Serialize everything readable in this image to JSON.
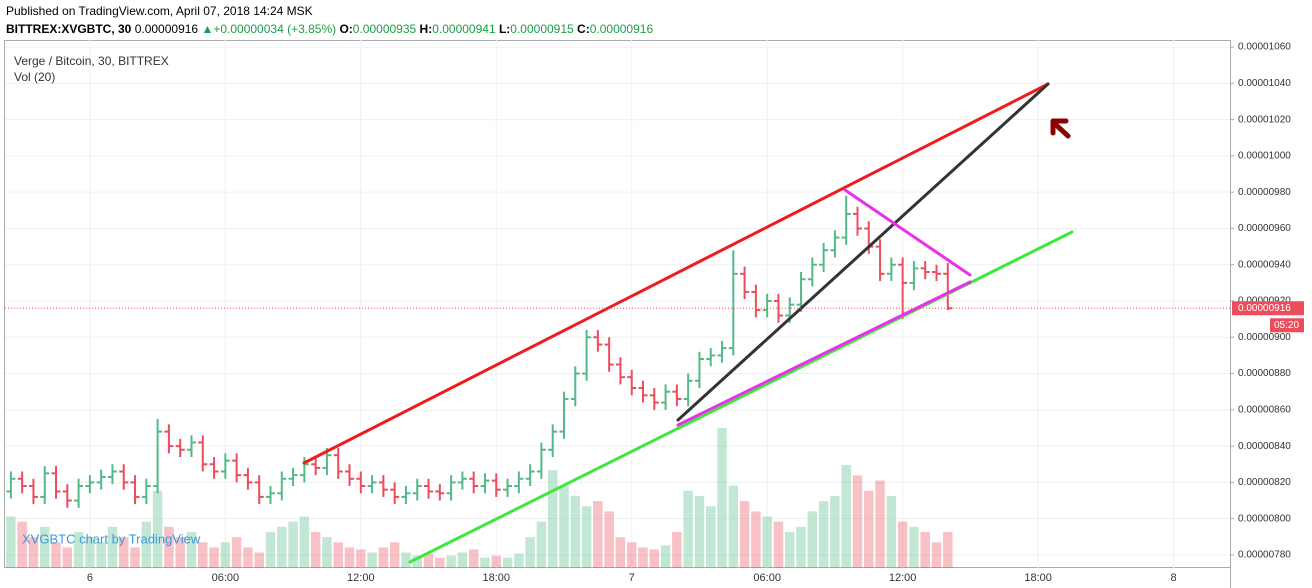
{
  "header": {
    "published": "Published on TradingView.com, April 07, 2018 14:24 MSK",
    "symbol": "BITTREX:XVGBTC, 30",
    "last": "0.00000916",
    "arrow": "▲",
    "change": "+0.00000034 (+3.85%)",
    "o_label": "O:",
    "o": "0.00000935",
    "h_label": "H:",
    "h": "0.00000941",
    "l_label": "L:",
    "l": "0.00000915",
    "c_label": "C:",
    "c": "0.00000916"
  },
  "chart_data": {
    "type": "ohlc",
    "title": "Verge / Bitcoin, 30, BITTREX",
    "volume_label": "Vol (20)",
    "watermark": "XVGBTC chart by TradingView",
    "up_color": "#53b987",
    "down_color": "#eb4d5c",
    "x": [
      -3.5,
      -3,
      -2.5,
      -2,
      -1.5,
      -1,
      -0.5,
      0,
      0.5,
      1,
      1.5,
      2,
      2.5,
      3,
      3.5,
      4,
      4.5,
      5,
      5.5,
      6,
      6.5,
      7,
      7.5,
      8,
      8.5,
      9,
      9.5,
      10,
      10.5,
      11,
      11.5,
      12,
      12.5,
      13,
      13.5,
      14,
      14.5,
      15,
      15.5,
      16,
      16.5,
      17,
      17.5,
      18,
      18.5,
      19,
      19.5,
      20,
      20.5,
      21,
      21.5,
      22,
      22.5,
      23,
      23.5,
      24,
      24.5,
      25,
      25.5,
      26,
      26.5,
      27,
      27.5,
      28,
      28.5,
      29,
      29.5,
      30,
      30.5,
      31,
      31.5,
      32,
      32.5,
      33,
      33.5,
      34,
      34.5,
      35,
      35.5,
      36,
      36.5,
      37,
      37.5,
      38
    ],
    "open": [
      8.15e-06,
      8.22e-06,
      8.18e-06,
      8.12e-06,
      8.25e-06,
      8.15e-06,
      8.1e-06,
      8.18e-06,
      8.2e-06,
      8.23e-06,
      8.26e-06,
      8.2e-06,
      8.12e-06,
      8.18e-06,
      8.48e-06,
      8.4e-06,
      8.38e-06,
      8.42e-06,
      8.3e-06,
      8.26e-06,
      8.32e-06,
      8.24e-06,
      8.2e-06,
      8.12e-06,
      8.14e-06,
      8.22e-06,
      8.24e-06,
      8.3e-06,
      8.28e-06,
      8.35e-06,
      8.26e-06,
      8.22e-06,
      8.18e-06,
      8.2e-06,
      8.16e-06,
      8.12e-06,
      8.14e-06,
      8.18e-06,
      8.15e-06,
      8.14e-06,
      8.2e-06,
      8.22e-06,
      8.18e-06,
      8.21e-06,
      8.16e-06,
      8.18e-06,
      8.22e-06,
      8.26e-06,
      8.38e-06,
      8.48e-06,
      8.66e-06,
      8.8e-06,
      9e-06,
      8.96e-06,
      8.85e-06,
      8.78e-06,
      8.72e-06,
      8.68e-06,
      8.64e-06,
      8.7e-06,
      8.66e-06,
      8.76e-06,
      8.88e-06,
      8.9e-06,
      8.94e-06,
      9.35e-06,
      9.25e-06,
      9.15e-06,
      9.2e-06,
      9.12e-06,
      9.18e-06,
      9.32e-06,
      9.4e-06,
      9.48e-06,
      9.55e-06,
      9.68e-06,
      9.6e-06,
      9.5e-06,
      9.35e-06,
      9.4e-06,
      9.3e-06,
      9.38e-06,
      9.36e-06,
      9.35e-06
    ],
    "high": [
      8.26e-06,
      8.26e-06,
      8.22e-06,
      8.29e-06,
      8.29e-06,
      8.19e-06,
      8.22e-06,
      8.24e-06,
      8.27e-06,
      8.3e-06,
      8.3e-06,
      8.24e-06,
      8.22e-06,
      8.55e-06,
      8.52e-06,
      8.44e-06,
      8.46e-06,
      8.46e-06,
      8.34e-06,
      8.36e-06,
      8.36e-06,
      8.28e-06,
      8.24e-06,
      8.18e-06,
      8.26e-06,
      8.28e-06,
      8.34e-06,
      8.34e-06,
      8.39e-06,
      8.39e-06,
      8.3e-06,
      8.26e-06,
      8.24e-06,
      8.24e-06,
      8.2e-06,
      8.18e-06,
      8.22e-06,
      8.22e-06,
      8.19e-06,
      8.24e-06,
      8.26e-06,
      8.26e-06,
      8.25e-06,
      8.25e-06,
      8.22e-06,
      8.26e-06,
      8.3e-06,
      8.42e-06,
      8.52e-06,
      8.7e-06,
      8.84e-06,
      9.04e-06,
      9.04e-06,
      9e-06,
      8.89e-06,
      8.82e-06,
      8.76e-06,
      8.72e-06,
      8.74e-06,
      8.74e-06,
      8.8e-06,
      8.92e-06,
      8.94e-06,
      8.98e-06,
      9.48e-06,
      9.39e-06,
      9.29e-06,
      9.24e-06,
      9.24e-06,
      9.22e-06,
      9.36e-06,
      9.44e-06,
      9.52e-06,
      9.59e-06,
      9.78e-06,
      9.72e-06,
      9.64e-06,
      9.54e-06,
      9.44e-06,
      9.44e-06,
      9.42e-06,
      9.42e-06,
      9.4e-06,
      9.41e-06
    ],
    "low": [
      8.11e-06,
      8.14e-06,
      8.08e-06,
      8.08e-06,
      8.11e-06,
      8.06e-06,
      8.06e-06,
      8.14e-06,
      8.16e-06,
      8.19e-06,
      8.16e-06,
      8.08e-06,
      8.08e-06,
      8.14e-06,
      8.36e-06,
      8.34e-06,
      8.34e-06,
      8.26e-06,
      8.22e-06,
      8.22e-06,
      8.2e-06,
      8.16e-06,
      8.08e-06,
      8.08e-06,
      8.1e-06,
      8.18e-06,
      8.2e-06,
      8.24e-06,
      8.24e-06,
      8.22e-06,
      8.18e-06,
      8.14e-06,
      8.14e-06,
      8.12e-06,
      8.08e-06,
      8.08e-06,
      8.1e-06,
      8.11e-06,
      8.1e-06,
      8.1e-06,
      8.16e-06,
      8.14e-06,
      8.14e-06,
      8.12e-06,
      8.12e-06,
      8.14e-06,
      8.18e-06,
      8.22e-06,
      8.34e-06,
      8.44e-06,
      8.62e-06,
      8.76e-06,
      8.92e-06,
      8.81e-06,
      8.74e-06,
      8.68e-06,
      8.64e-06,
      8.6e-06,
      8.6e-06,
      8.62e-06,
      8.62e-06,
      8.72e-06,
      8.84e-06,
      8.86e-06,
      8.9e-06,
      9.21e-06,
      9.11e-06,
      9.11e-06,
      9.08e-06,
      9.08e-06,
      9.14e-06,
      9.28e-06,
      9.36e-06,
      9.44e-06,
      9.51e-06,
      9.56e-06,
      9.46e-06,
      9.31e-06,
      9.31e-06,
      9.1e-06,
      9.26e-06,
      9.32e-06,
      9.31e-06,
      9.15e-06
    ],
    "close": [
      8.22e-06,
      8.18e-06,
      8.12e-06,
      8.25e-06,
      8.15e-06,
      8.1e-06,
      8.18e-06,
      8.2e-06,
      8.23e-06,
      8.26e-06,
      8.2e-06,
      8.12e-06,
      8.18e-06,
      8.48e-06,
      8.4e-06,
      8.38e-06,
      8.42e-06,
      8.3e-06,
      8.26e-06,
      8.32e-06,
      8.24e-06,
      8.2e-06,
      8.12e-06,
      8.14e-06,
      8.22e-06,
      8.24e-06,
      8.3e-06,
      8.28e-06,
      8.35e-06,
      8.26e-06,
      8.22e-06,
      8.18e-06,
      8.2e-06,
      8.16e-06,
      8.12e-06,
      8.14e-06,
      8.18e-06,
      8.15e-06,
      8.14e-06,
      8.2e-06,
      8.22e-06,
      8.18e-06,
      8.21e-06,
      8.16e-06,
      8.18e-06,
      8.22e-06,
      8.26e-06,
      8.38e-06,
      8.48e-06,
      8.66e-06,
      8.8e-06,
      9e-06,
      8.96e-06,
      8.85e-06,
      8.78e-06,
      8.72e-06,
      8.68e-06,
      8.64e-06,
      8.7e-06,
      8.66e-06,
      8.76e-06,
      8.88e-06,
      8.9e-06,
      8.94e-06,
      9.35e-06,
      9.25e-06,
      9.15e-06,
      9.2e-06,
      9.12e-06,
      9.18e-06,
      9.32e-06,
      9.4e-06,
      9.48e-06,
      9.55e-06,
      9.68e-06,
      9.6e-06,
      9.5e-06,
      9.35e-06,
      9.4e-06,
      9.3e-06,
      9.38e-06,
      9.36e-06,
      9.35e-06,
      9.16e-06
    ],
    "volume": [
      50,
      45,
      30,
      40,
      25,
      20,
      35,
      30,
      25,
      40,
      30,
      20,
      45,
      75,
      40,
      30,
      35,
      25,
      20,
      25,
      30,
      20,
      15,
      35,
      40,
      45,
      50,
      35,
      30,
      25,
      20,
      18,
      15,
      20,
      25,
      15,
      12,
      14,
      10,
      12,
      15,
      18,
      10,
      12,
      10,
      14,
      30,
      45,
      95,
      80,
      70,
      60,
      65,
      55,
      30,
      25,
      20,
      18,
      22,
      35,
      75,
      70,
      60,
      136,
      80,
      65,
      55,
      50,
      45,
      35,
      40,
      55,
      65,
      70,
      100,
      90,
      75,
      85,
      70,
      45,
      40,
      35,
      25,
      35
    ],
    "xlim": [
      -3.76,
      50.5
    ],
    "xticks": [
      {
        "value": 0,
        "label": "6"
      },
      {
        "value": 6,
        "label": "06:00"
      },
      {
        "value": 12,
        "label": "12:00"
      },
      {
        "value": 18,
        "label": "18:00"
      },
      {
        "value": 24,
        "label": "7"
      },
      {
        "value": 30,
        "label": "06:00"
      },
      {
        "value": 36,
        "label": "12:00"
      },
      {
        "value": 42,
        "label": "18:00"
      },
      {
        "value": 48,
        "label": "8"
      }
    ],
    "ylim": [
      7.728e-06,
      1.0639e-05
    ],
    "yticks": [
      {
        "value": 1.06e-05,
        "label": "0.00001060"
      },
      {
        "value": 1.04e-05,
        "label": "0.00001040"
      },
      {
        "value": 1.02e-05,
        "label": "0.00001020"
      },
      {
        "value": 1e-05,
        "label": "0.00001000"
      },
      {
        "value": 9.8e-06,
        "label": "0.00000980"
      },
      {
        "value": 9.6e-06,
        "label": "0.00000960"
      },
      {
        "value": 9.4e-06,
        "label": "0.00000940"
      },
      {
        "value": 9.2e-06,
        "label": "0.00000920"
      },
      {
        "value": 9e-06,
        "label": "0.00000900"
      },
      {
        "value": 8.8e-06,
        "label": "0.00000880"
      },
      {
        "value": 8.6e-06,
        "label": "0.00000860"
      },
      {
        "value": 8.4e-06,
        "label": "0.00000840"
      },
      {
        "value": 8.2e-06,
        "label": "0.00000820"
      },
      {
        "value": 8e-06,
        "label": "0.00000800"
      },
      {
        "value": 7.8e-06,
        "label": "0.00000780"
      }
    ],
    "grid": true,
    "last_price": {
      "value": 9.16e-06,
      "label": "0.00000916"
    },
    "countdown": "05:20"
  }
}
